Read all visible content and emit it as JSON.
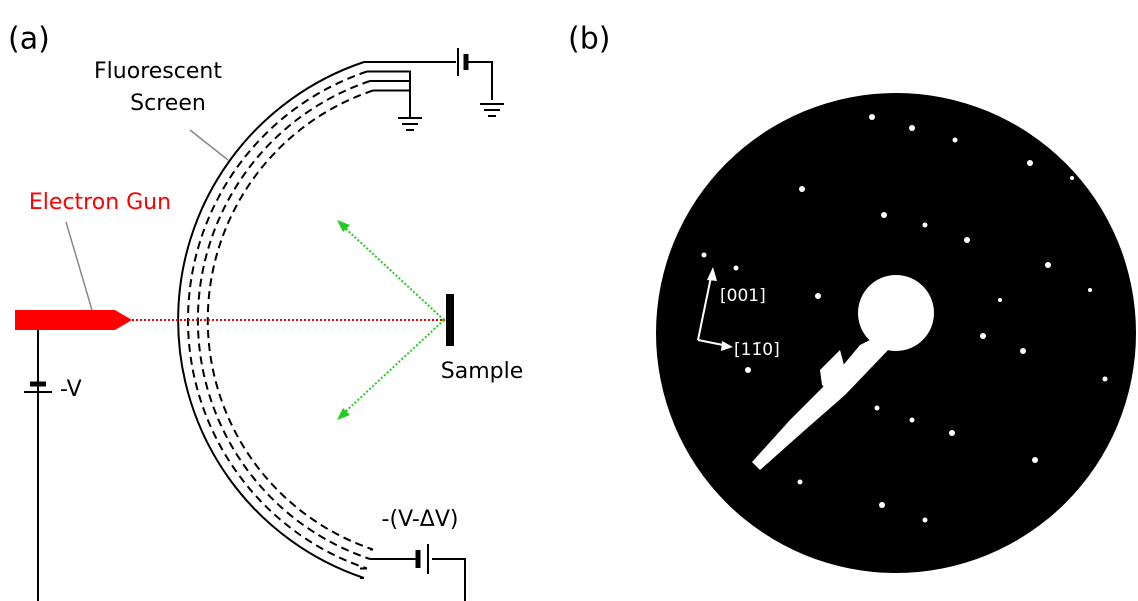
{
  "panel_a": {
    "label": "(a)",
    "screen_label": [
      "Fluorescent",
      "Screen"
    ],
    "gun_label": "Electron Gun",
    "gun_voltage": "-V",
    "sample_label": "Sample",
    "retard_voltage": "-(V-ΔV)"
  },
  "panel_b": {
    "label": "(b)",
    "axis_vertical": "[001]",
    "axis_horizontal": "[11̄0]"
  }
}
